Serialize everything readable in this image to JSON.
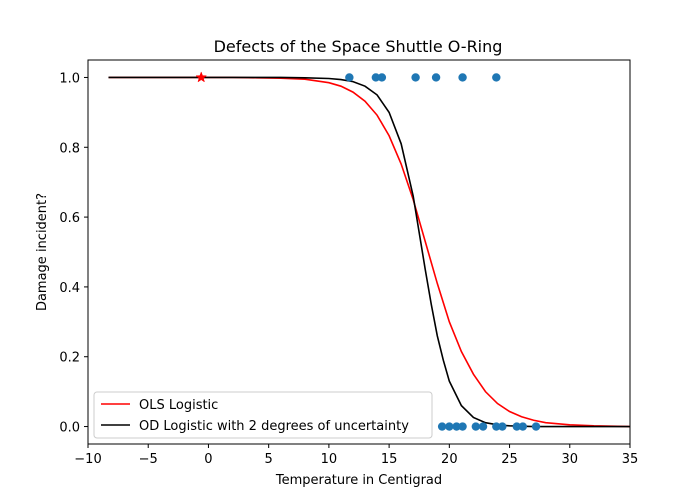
{
  "chart_data": {
    "type": "line",
    "title": "Defects of the Space Shuttle O-Ring",
    "xlabel": "Temperature in Centigrad",
    "ylabel": "Damage incident?",
    "xlim": [
      -10,
      35
    ],
    "ylim": [
      -0.05,
      1.05
    ],
    "xticks": [
      -10,
      -5,
      0,
      5,
      10,
      15,
      20,
      25,
      30,
      35
    ],
    "xtick_labels": [
      "−10",
      "−5",
      "0",
      "5",
      "10",
      "15",
      "20",
      "25",
      "30",
      "35"
    ],
    "yticks": [
      0.0,
      0.2,
      0.4,
      0.6,
      0.8,
      1.0
    ],
    "ytick_labels": [
      "0.0",
      "0.2",
      "0.4",
      "0.6",
      "0.8",
      "1.0"
    ],
    "grid": false,
    "legend": {
      "placement": "lower-left"
    },
    "series": [
      {
        "name": "OLS Logistic",
        "kind": "line",
        "color": "#ff0000",
        "x": [
          -8.3,
          -5,
          -2,
          0,
          2,
          4,
          6,
          8,
          10,
          11,
          12,
          13,
          14,
          15,
          16,
          17,
          18,
          18.5,
          19,
          19.5,
          20,
          21,
          22,
          23,
          24,
          25,
          26,
          27,
          28,
          30,
          32,
          35
        ],
        "y": [
          1.0,
          1.0,
          1.0,
          1.0,
          1.0,
          0.999,
          0.998,
          0.995,
          0.985,
          0.975,
          0.958,
          0.932,
          0.892,
          0.833,
          0.752,
          0.65,
          0.53,
          0.47,
          0.41,
          0.355,
          0.3,
          0.215,
          0.15,
          0.1,
          0.066,
          0.043,
          0.028,
          0.018,
          0.011,
          0.005,
          0.002,
          0.0
        ]
      },
      {
        "name": "OD Logistic with 2 degrees of uncertainty",
        "kind": "line",
        "color": "#000000",
        "x": [
          -8.3,
          -5,
          -2,
          0,
          2,
          4,
          6,
          8,
          10,
          11,
          12,
          13,
          14,
          15,
          16,
          17,
          18,
          18.5,
          19,
          19.5,
          20,
          21,
          22,
          23,
          24,
          25,
          26,
          27,
          28,
          30,
          32,
          35
        ],
        "y": [
          1.0,
          1.0,
          1.0,
          1.0,
          1.0,
          1.0,
          1.0,
          0.999,
          0.997,
          0.994,
          0.988,
          0.975,
          0.95,
          0.9,
          0.81,
          0.66,
          0.45,
          0.35,
          0.26,
          0.19,
          0.13,
          0.06,
          0.026,
          0.011,
          0.005,
          0.002,
          0.001,
          0.0,
          0.0,
          0.0,
          0.0,
          0.0
        ]
      },
      {
        "kind": "scatter",
        "color": "#1f77b4",
        "x": [
          11.7,
          13.9,
          14.4,
          17.2,
          18.9,
          21.1,
          23.9,
          19.4,
          20.0,
          20.6,
          21.1,
          22.2,
          22.8,
          23.9,
          24.4,
          25.6,
          26.1,
          27.2
        ],
        "y": [
          1,
          1,
          1,
          1,
          1,
          1,
          1,
          0,
          0,
          0,
          0,
          0,
          0,
          0,
          0,
          0,
          0,
          0
        ]
      },
      {
        "kind": "star",
        "color": "#ff0000",
        "x": [
          -0.6
        ],
        "y": [
          1
        ]
      }
    ]
  }
}
